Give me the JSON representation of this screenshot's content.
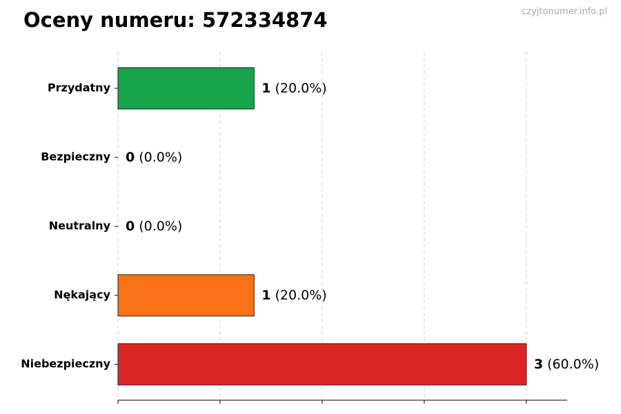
{
  "chart_data": {
    "type": "barh",
    "title": "Oceny numeru: 572334874",
    "watermark": "czyjtonumer.info.pl",
    "categories": [
      "Przydatny",
      "Bezpieczny",
      "Neutralny",
      "Nękający",
      "Niebezpieczny"
    ],
    "values": [
      1,
      0,
      0,
      1,
      3
    ],
    "percent_labels": [
      "(20.0%)",
      "(0.0%)",
      "(0.0%)",
      "(20.0%)",
      "(60.0%)"
    ],
    "colors": [
      "#16a34a",
      "#9ca3af",
      "#9ca3af",
      "#f97316",
      "#dc2626"
    ],
    "xlim": [
      0,
      3.3
    ],
    "xticks": [
      0,
      0.75,
      1.5,
      2.25,
      3
    ],
    "grid": true
  }
}
